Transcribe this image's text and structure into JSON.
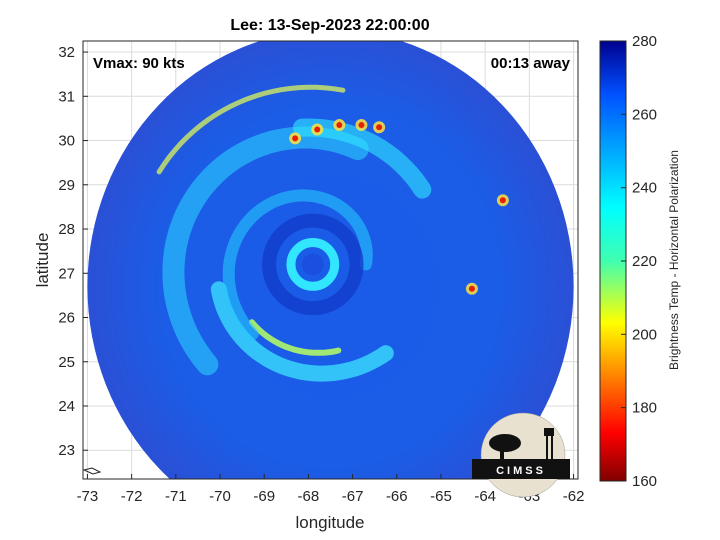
{
  "chart_data": {
    "type": "heatmap",
    "title": "Lee: 13-Sep-2023 22:00:00",
    "xlabel": "longitude",
    "ylabel": "latitude",
    "xlim": [
      -73.1,
      -61.9
    ],
    "ylim": [
      22.35,
      32.25
    ],
    "xticks": [
      -73,
      -72,
      -71,
      -70,
      -69,
      -68,
      -67,
      -66,
      -65,
      -64,
      -63,
      -62
    ],
    "yticks": [
      23,
      24,
      25,
      26,
      27,
      28,
      29,
      30,
      31,
      32
    ],
    "grid": true,
    "annotations": {
      "vmax": "Vmax: 90 kts",
      "time_away": "00:13 away"
    },
    "storm": {
      "center": [
        -67.9,
        27.2
      ],
      "eye_radius_deg": 0.45,
      "swath_center": [
        -67.5,
        26.7
      ],
      "swath_radius_deg": [
        5.5,
        5.8
      ]
    },
    "colorbar": {
      "label": "Brightness Temp - Horizontal Polarization",
      "range": [
        160,
        280
      ],
      "ticks": [
        160,
        180,
        200,
        220,
        240,
        260,
        280
      ],
      "colormap": "jet"
    },
    "logo": {
      "text": "CIMSS"
    }
  }
}
